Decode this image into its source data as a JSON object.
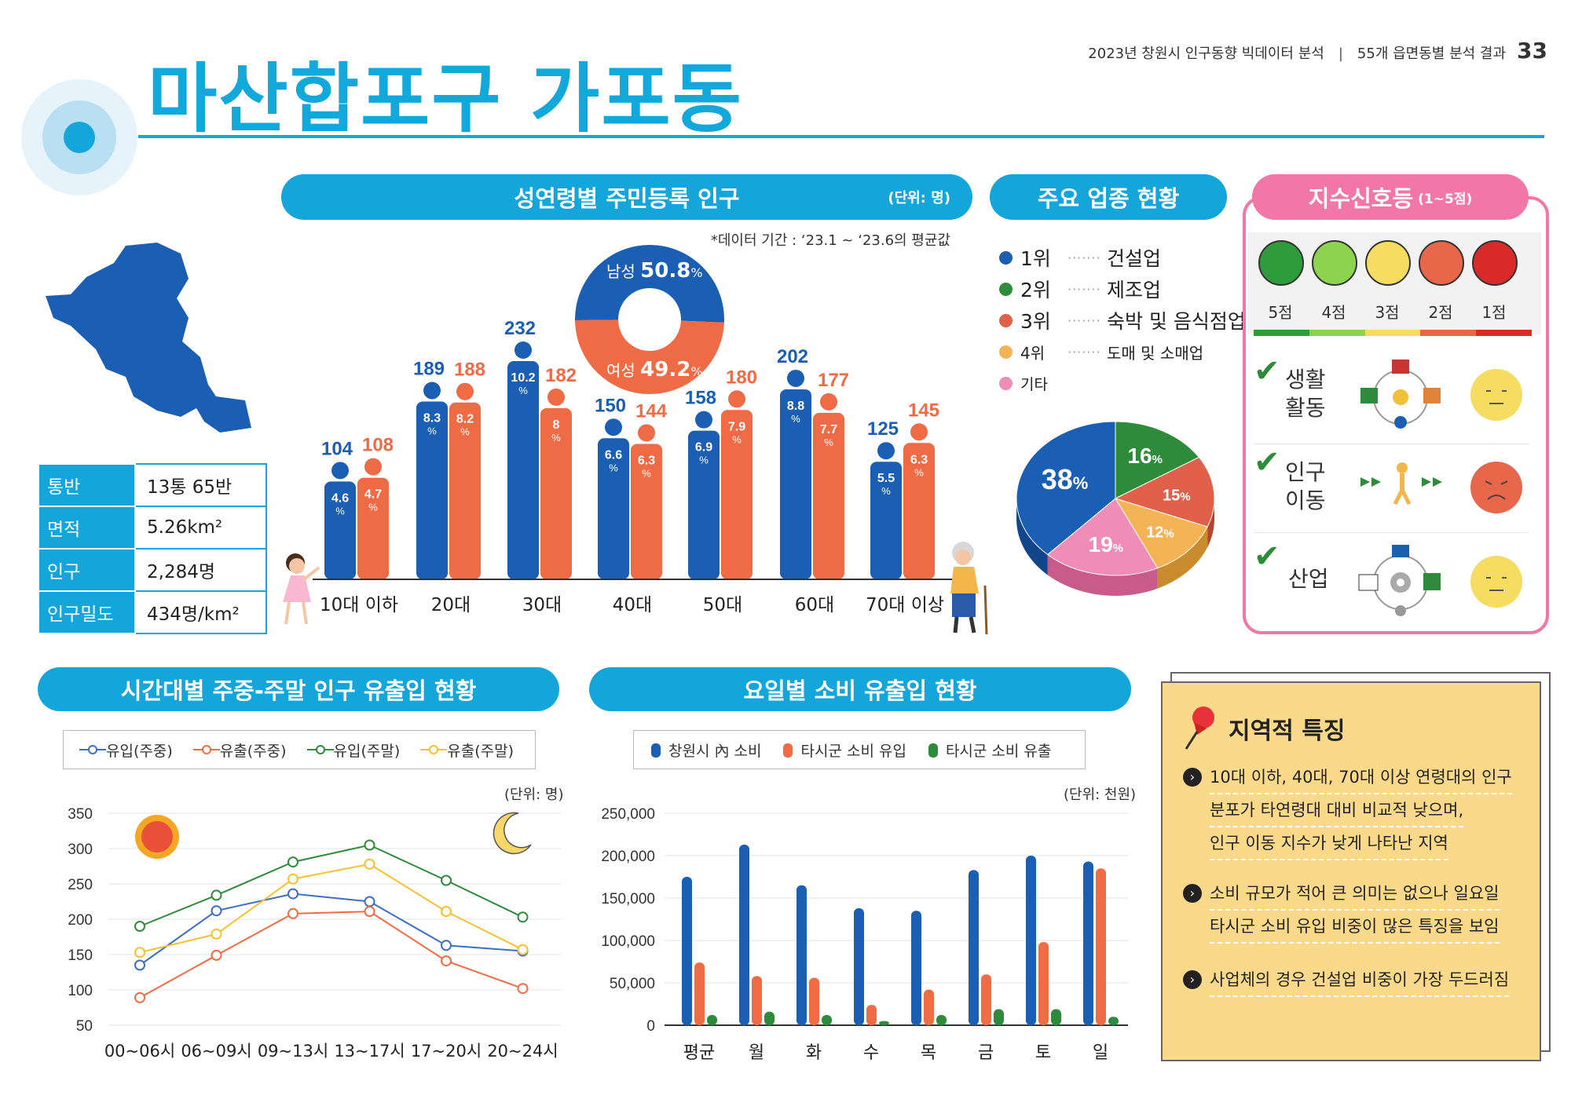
{
  "header": {
    "report": "2023년 창원시 인구동향 빅데이터 분석",
    "section": "55개 읍면동별 분석 결과",
    "page": "33",
    "title": "마산합포구 가포동"
  },
  "info_table": [
    {
      "key": "통반",
      "value": "13통 65반"
    },
    {
      "key": "면적",
      "value": "5.26km²"
    },
    {
      "key": "인구",
      "value": "2,284명"
    },
    {
      "key": "인구밀도",
      "value": "434명/km²"
    }
  ],
  "population_section": {
    "title": "성연령별 주민등록 인구",
    "unit": "(단위: 명)",
    "note": "*데이터 기간 : ‘23.1 ~ ‘23.6의 평균값",
    "gender": {
      "male_label": "남성",
      "male_value": "50.8",
      "male_pct": 50.8,
      "female_label": "여성",
      "female_value": "49.2",
      "female_pct": 49.2,
      "male_color": "#1a5fb4",
      "female_color": "#ee6b45"
    }
  },
  "industry_section": {
    "title": "주요 업종 현황",
    "items": [
      {
        "rank": "1위",
        "name": "건설업",
        "color": "#1a5fb4"
      },
      {
        "rank": "2위",
        "name": "제조업",
        "color": "#2e8b3a"
      },
      {
        "rank": "3위",
        "name": "숙박 및 음식점업",
        "color": "#e0604a"
      },
      {
        "rank": "4위",
        "name": "도매 및 소매업",
        "color": "#f4b455"
      },
      {
        "rank": "기타",
        "name": "",
        "color": "#f08cb8"
      }
    ]
  },
  "signal_section": {
    "title": "지수신호등",
    "subtitle": "(1~5점)",
    "scores": [
      "5점",
      "4점",
      "3점",
      "2점",
      "1점"
    ],
    "score_colors": [
      "#2e9c3a",
      "#8ed34f",
      "#f7dc62",
      "#e8674a",
      "#d92a2a"
    ],
    "rows": [
      {
        "label1": "생활",
        "label2": "활동",
        "score": 3
      },
      {
        "label1": "인구",
        "label2": "이동",
        "score": 2
      },
      {
        "label1": "산업",
        "label2": "",
        "score": 3
      }
    ]
  },
  "timeline_section": {
    "title": "시간대별 주중-주말 인구 유출입 현황",
    "unit": "(단위: 명)"
  },
  "consumption_section": {
    "title": "요일별 소비 유출입 현황",
    "unit": "(단위: 천원)"
  },
  "features": {
    "title": "지역적 특징",
    "items": [
      [
        "10대 이하, 40대, 70대 이상 연령대의 인구",
        "분포가 타연령대 대비 비교적 낮으며,",
        "인구 이동 지수가 낮게 나타난 지역"
      ],
      [
        "소비 규모가 적어 큰 의미는 없으나 일요일",
        "타시군 소비 유입 비중이 많은 특징을 보임"
      ],
      [
        "사업체의 경우 건설업 비중이 가장 두드러짐"
      ]
    ]
  },
  "chart_data": [
    {
      "type": "bar",
      "title": "성연령별 주민등록 인구",
      "categories": [
        "10대 이하",
        "20대",
        "30대",
        "40대",
        "50대",
        "60대",
        "70대 이상"
      ],
      "series": [
        {
          "name": "남성",
          "values": [
            104,
            189,
            232,
            150,
            158,
            202,
            125
          ],
          "pct": [
            "4.6",
            "8.3",
            "10.2",
            "6.6",
            "6.9",
            "8.8",
            "5.5"
          ],
          "color": "#1a5fb4"
        },
        {
          "name": "여성",
          "values": [
            108,
            188,
            182,
            144,
            180,
            177,
            145
          ],
          "pct": [
            "4.7",
            "8.2",
            "8",
            "6.3",
            "7.9",
            "7.7",
            "6.3"
          ],
          "color": "#ee6b45"
        }
      ],
      "ylim": [
        0,
        250
      ]
    },
    {
      "type": "pie",
      "title": "주요 업종 현황",
      "labels": [
        "1위",
        "2위",
        "3위",
        "4위",
        "기타"
      ],
      "values": [
        38,
        16,
        15,
        12,
        19
      ],
      "colors": [
        "#1a5fb4",
        "#2e8b3a",
        "#e0604a",
        "#f4b455",
        "#f08cb8"
      ]
    },
    {
      "type": "line",
      "title": "시간대별 주중-주말 인구 유출입 현황",
      "x": [
        "00~06시",
        "06~09시",
        "09~13시",
        "13~17시",
        "17~20시",
        "20~24시"
      ],
      "series": [
        {
          "name": "유입(주중)",
          "values": [
            135,
            212,
            236,
            225,
            163,
            155
          ],
          "color": "#3c6fc4"
        },
        {
          "name": "유출(주중)",
          "values": [
            89,
            149,
            208,
            211,
            141,
            102
          ],
          "color": "#ef6c45"
        },
        {
          "name": "유입(주말)",
          "values": [
            190,
            234,
            281,
            305,
            255,
            203
          ],
          "color": "#2e8b3a"
        },
        {
          "name": "유출(주말)",
          "values": [
            153,
            179,
            257,
            278,
            211,
            157
          ],
          "color": "#f6c12f"
        }
      ],
      "ylim": [
        50,
        350
      ],
      "yticks": [
        50,
        100,
        150,
        200,
        250,
        300,
        350
      ]
    },
    {
      "type": "bar",
      "title": "요일별 소비 유출입 현황",
      "categories": [
        "평균",
        "월",
        "화",
        "수",
        "목",
        "금",
        "토",
        "일"
      ],
      "series": [
        {
          "name": "창원시 內 소비",
          "values": [
            175000,
            213000,
            165000,
            138000,
            135000,
            183000,
            200000,
            193000
          ],
          "color": "#1a5fb4"
        },
        {
          "name": "타시군 소비 유입",
          "values": [
            74000,
            58000,
            56000,
            24000,
            42000,
            60000,
            98000,
            185000
          ],
          "color": "#ef6c45"
        },
        {
          "name": "타시군 소비 유출",
          "values": [
            12000,
            16000,
            12000,
            5000,
            12000,
            19000,
            19000,
            10000
          ],
          "color": "#2e8b3a"
        }
      ],
      "ylim": [
        0,
        250000
      ],
      "yticks": [
        "0",
        "50,000",
        "100,000",
        "150,000",
        "200,000",
        "250,000"
      ]
    }
  ]
}
